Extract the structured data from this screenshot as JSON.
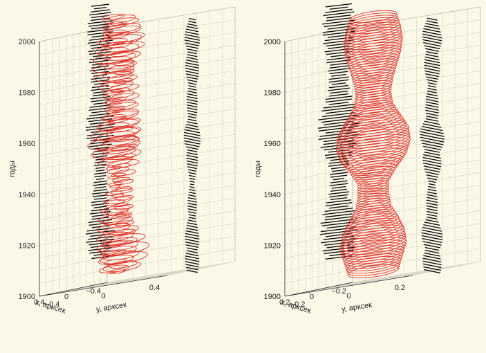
{
  "chart_data": [
    {
      "type": "line",
      "panel": "left",
      "zlabel": "годы",
      "xlabel": "x, арксек",
      "ylabel": "y, арксек",
      "zlim": [
        1900,
        2000
      ],
      "xlim": [
        -0.5,
        0.5
      ],
      "ylim": [
        -0.5,
        0.5
      ],
      "z_ticks": [
        "1900",
        "1920",
        "1940",
        "1960",
        "1980",
        "2000"
      ],
      "x_ticks": [
        "−0.4",
        "0",
        "0.4"
      ],
      "y_ticks": [
        "−0.4",
        "0",
        "0.4"
      ],
      "grid": true,
      "series": [
        {
          "color": "#e0302a",
          "style": "trajectory",
          "x_amplitude": [
            {
              "year": 1900,
              "value": 0.17
            },
            {
              "year": 1905,
              "value": 0.24
            },
            {
              "year": 1910,
              "value": 0.26
            },
            {
              "year": 1915,
              "value": 0.2
            },
            {
              "year": 1920,
              "value": 0.17
            },
            {
              "year": 1925,
              "value": 0.15
            },
            {
              "year": 1930,
              "value": 0.12
            },
            {
              "year": 1935,
              "value": 0.1
            },
            {
              "year": 1940,
              "value": 0.13
            },
            {
              "year": 1945,
              "value": 0.22
            },
            {
              "year": 1950,
              "value": 0.27
            },
            {
              "year": 1955,
              "value": 0.24
            },
            {
              "year": 1960,
              "value": 0.19
            },
            {
              "year": 1965,
              "value": 0.16
            },
            {
              "year": 1970,
              "value": 0.17
            },
            {
              "year": 1975,
              "value": 0.19
            },
            {
              "year": 1980,
              "value": 0.21
            },
            {
              "year": 1985,
              "value": 0.22
            },
            {
              "year": 1990,
              "value": 0.24
            },
            {
              "year": 1995,
              "value": 0.2
            },
            {
              "year": 2000,
              "value": 0.16
            }
          ]
        },
        {
          "color": "#111111",
          "style": "x-component projection"
        },
        {
          "color": "#111111",
          "style": "y-component projection"
        }
      ]
    },
    {
      "type": "line",
      "panel": "right",
      "zlabel": "годы",
      "xlabel": "x, арксек",
      "ylabel": "y, арксек",
      "zlim": [
        1900,
        2000
      ],
      "xlim": [
        -0.25,
        0.25
      ],
      "ylim": [
        -0.25,
        0.25
      ],
      "z_ticks": [
        "1900",
        "1920",
        "1940",
        "1960",
        "1980",
        "2000"
      ],
      "x_ticks": [
        "−0.2",
        "0",
        "0.2"
      ],
      "y_ticks": [
        "−0.2",
        "0",
        "0.2"
      ],
      "grid": true,
      "series": [
        {
          "color": "#e0302a",
          "style": "envelope",
          "amplitude": [
            {
              "year": 1900,
              "value": 0.13
            },
            {
              "year": 1905,
              "value": 0.15
            },
            {
              "year": 1910,
              "value": 0.17
            },
            {
              "year": 1915,
              "value": 0.16
            },
            {
              "year": 1920,
              "value": 0.13
            },
            {
              "year": 1925,
              "value": 0.09
            },
            {
              "year": 1930,
              "value": 0.08
            },
            {
              "year": 1935,
              "value": 0.08
            },
            {
              "year": 1940,
              "value": 0.12
            },
            {
              "year": 1945,
              "value": 0.17
            },
            {
              "year": 1950,
              "value": 0.19
            },
            {
              "year": 1955,
              "value": 0.18
            },
            {
              "year": 1960,
              "value": 0.14
            },
            {
              "year": 1965,
              "value": 0.1
            },
            {
              "year": 1970,
              "value": 0.09
            },
            {
              "year": 1975,
              "value": 0.1
            },
            {
              "year": 1980,
              "value": 0.12
            },
            {
              "year": 1985,
              "value": 0.14
            },
            {
              "year": 1990,
              "value": 0.15
            },
            {
              "year": 1995,
              "value": 0.14
            },
            {
              "year": 2000,
              "value": 0.12
            }
          ]
        },
        {
          "color": "#111111",
          "style": "x-component projection"
        },
        {
          "color": "#111111",
          "style": "y-component projection"
        }
      ]
    }
  ]
}
